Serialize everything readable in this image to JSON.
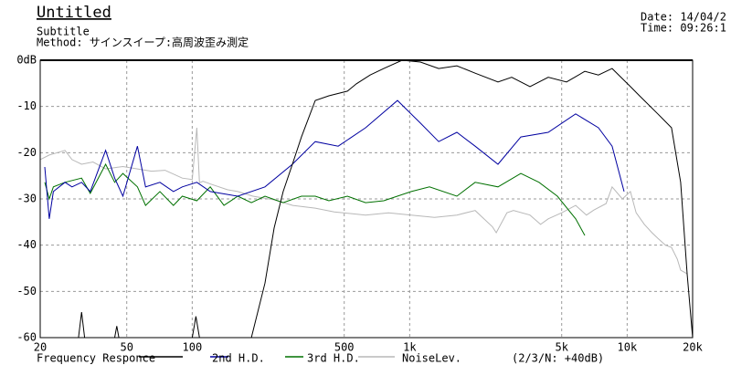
{
  "chart_data": {
    "type": "line",
    "title": "Untitled",
    "subtitle": "Subtitle",
    "method": "Method: サインスイープ:高周波歪み測定",
    "date": "Date: 14/04/2",
    "time": "Time: 09:26:1",
    "legend_note": "(2/3/N: +40dB)",
    "log_x": true,
    "grid": true,
    "xlim": [
      20,
      20000
    ],
    "ylim": [
      -60,
      0
    ],
    "xticks": [
      20,
      50,
      100,
      500,
      {
        "value": 1000,
        "label": "1k"
      },
      {
        "value": 5000,
        "label": "5k"
      },
      {
        "value": 10000,
        "label": "10k"
      },
      {
        "value": 20000,
        "label": "20k"
      }
    ],
    "yticks": [
      {
        "value": 0,
        "label": "0dB"
      },
      -10,
      -20,
      -30,
      -40,
      -50,
      -60
    ],
    "series": [
      {
        "name": "Frequency Responce",
        "color": "#000000",
        "x": [
          30,
          31,
          32,
          null,
          44,
          45,
          46,
          null,
          100,
          104,
          108,
          null,
          187,
          216,
          238,
          262,
          289,
          318,
          368,
          425,
          517,
          569,
          658,
          760,
          923,
          1120,
          1359,
          1648,
          2000,
          2547,
          2944,
          3573,
          4336,
          5262,
          6383,
          7379,
          8531,
          10350,
          11400,
          13840,
          16000,
          17620,
          18870,
          20000
        ],
        "values": [
          -60,
          -54.5,
          -60,
          null,
          -60,
          -57.5,
          -60,
          null,
          -60,
          -55.4,
          -60,
          null,
          -60,
          -48.2,
          -36.3,
          -28.4,
          -22.5,
          -16.6,
          -8.7,
          -7.7,
          -6.7,
          -5.1,
          -3.2,
          -1.8,
          0,
          -0.4,
          -1.8,
          -1.2,
          -2.8,
          -4.7,
          -3.7,
          -5.7,
          -3.7,
          -4.7,
          -2.4,
          -3.2,
          -1.8,
          -5.7,
          -7.7,
          -11.6,
          -14.6,
          -26.4,
          -46.2,
          -60
        ]
      },
      {
        "name": "2nd H.D.",
        "color": "#0000a0",
        "x": [
          21,
          22,
          23,
          26,
          28,
          31,
          34,
          40,
          44,
          48,
          56,
          61,
          71,
          82,
          90,
          105,
          121,
          162,
          216,
          289,
          368,
          469,
          627,
          879,
          1120,
          1359,
          1648,
          2000,
          2547,
          3245,
          4336,
          5796,
          7379,
          8531,
          9683
        ],
        "values": [
          -23.1,
          -34.3,
          -28.4,
          -26.4,
          -27.4,
          -26.4,
          -28.4,
          -19.5,
          -25.5,
          -29.4,
          -18.6,
          -27.4,
          -26.4,
          -28.4,
          -27.4,
          -26.4,
          -28.4,
          -29.4,
          -27.4,
          -22.5,
          -17.6,
          -18.6,
          -14.6,
          -8.7,
          -13.6,
          -17.6,
          -15.6,
          -18.6,
          -22.5,
          -16.6,
          -15.6,
          -11.6,
          -14.6,
          -18.6,
          -28.4
        ]
      },
      {
        "name": "3rd H.D.",
        "color": "#007000",
        "x": [
          21,
          22,
          23,
          26,
          31,
          34,
          40,
          44,
          48,
          56,
          61,
          71,
          82,
          90,
          105,
          121,
          140,
          162,
          187,
          216,
          262,
          318,
          368,
          425,
          517,
          627,
          760,
          1017,
          1233,
          1648,
          2000,
          2547,
          3245,
          3934,
          4776,
          5796,
          6383
        ],
        "values": [
          -26.4,
          -30,
          -27.4,
          -26.4,
          -25.5,
          -28.8,
          -22.5,
          -26.4,
          -24.5,
          -27.4,
          -31.4,
          -28.4,
          -31.4,
          -29.4,
          -30.4,
          -27.4,
          -31.4,
          -29.4,
          -30.8,
          -29.4,
          -30.8,
          -29.4,
          -29.4,
          -30.4,
          -29.4,
          -30.8,
          -30.4,
          -28.4,
          -27.4,
          -29.4,
          -26.4,
          -27.4,
          -24.5,
          -26.4,
          -29.4,
          -34.3,
          -37.9
        ]
      },
      {
        "name": "NoiseLev.",
        "color": "#b8b8b8",
        "x": [
          20,
          22,
          24,
          26,
          28,
          31,
          35,
          40,
          48,
          56,
          65,
          75,
          90,
          100,
          105,
          108,
          112,
          122,
          145,
          162,
          190,
          238,
          290,
          368,
          450,
          627,
          800,
          1017,
          1300,
          1648,
          2000,
          2400,
          2500,
          2800,
          3000,
          3573,
          4000,
          4336,
          5000,
          5796,
          6500,
          7031,
          8000,
          8531,
          9500,
          10350,
          11000,
          12000,
          13000,
          13840,
          15000,
          16000,
          17000,
          17620,
          18870
        ],
        "values": [
          -21.5,
          -20.5,
          -20,
          -19.5,
          -21.5,
          -22.5,
          -22,
          -23.5,
          -23,
          -23.5,
          -24,
          -23.8,
          -25.5,
          -25.8,
          -14.6,
          -26.5,
          -26.2,
          -26.8,
          -28,
          -28.4,
          -29.4,
          -30.2,
          -31.4,
          -32,
          -32.8,
          -33.5,
          -33,
          -33.5,
          -34,
          -33.5,
          -32.5,
          -36,
          -37.3,
          -33,
          -32.5,
          -33.5,
          -35.5,
          -34.3,
          -33,
          -31.4,
          -33.5,
          -32.4,
          -31,
          -27.4,
          -30,
          -28.4,
          -33,
          -35.5,
          -37.3,
          -38.5,
          -40,
          -40.5,
          -43,
          -45.4,
          -46.2
        ]
      }
    ]
  }
}
